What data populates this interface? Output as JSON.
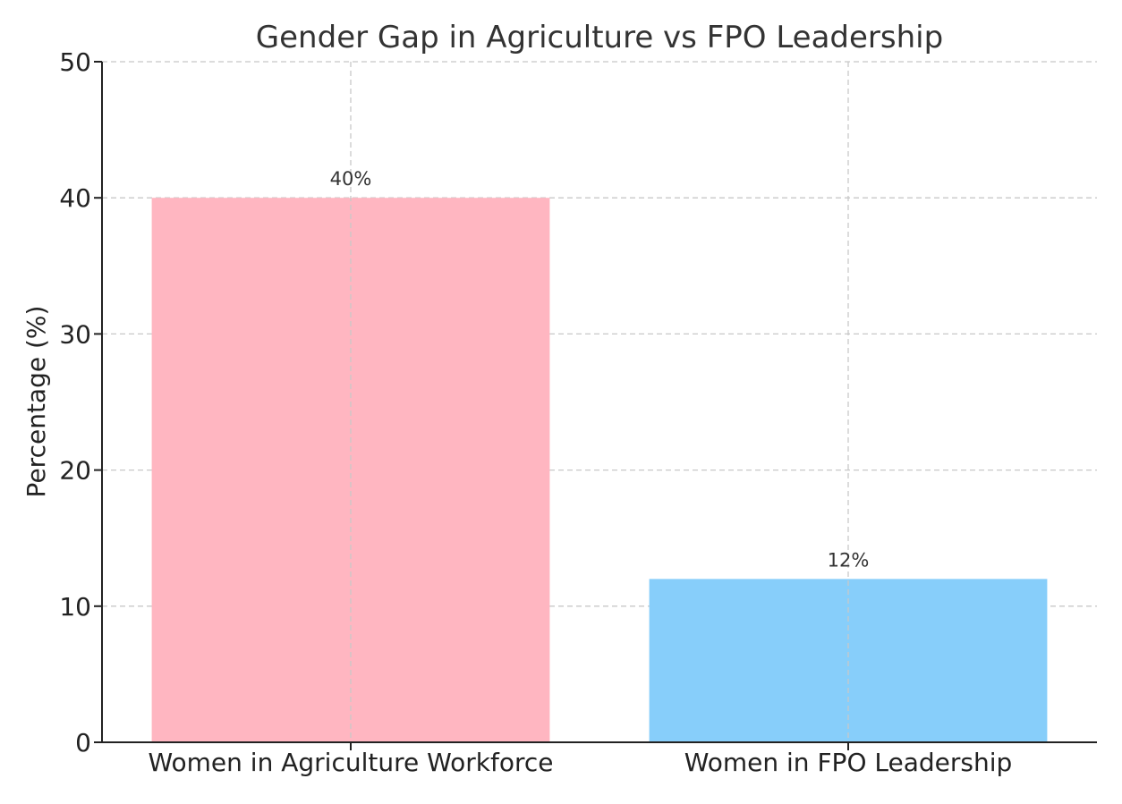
{
  "chart_data": {
    "type": "bar",
    "title": "Gender Gap in Agriculture vs FPO Leadership",
    "xlabel": "",
    "ylabel": "Percentage (%)",
    "categories": [
      "Women in Agriculture Workforce",
      "Women in FPO Leadership"
    ],
    "values": [
      40,
      12
    ],
    "value_labels": [
      "40%",
      "12%"
    ],
    "colors": [
      "#ffb6c1",
      "#87cefa"
    ],
    "ylim": [
      0,
      50
    ],
    "yticks": [
      0,
      10,
      20,
      30,
      40,
      50
    ],
    "grid": true
  }
}
